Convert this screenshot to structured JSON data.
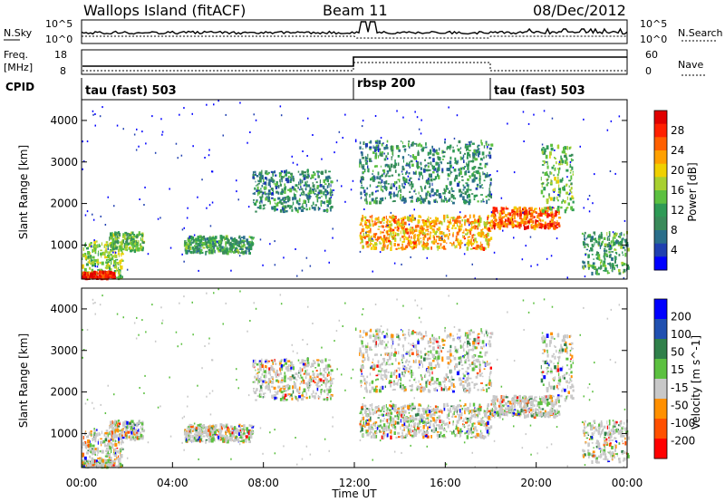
{
  "header": {
    "site": "Wallops Island (fitACF)",
    "beam": "Beam 11",
    "date": "08/Dec/2012"
  },
  "strip1": {
    "left_label": "N.Sky",
    "right_label": "N.Search",
    "left_ticks": [
      "10^5",
      "10^0"
    ],
    "right_ticks": [
      "10^5",
      "10^0"
    ]
  },
  "strip2": {
    "left_label_top": "Freq.",
    "left_label_bottom": "[MHz]",
    "right_label": "Nave",
    "left_ticks": [
      "18",
      "8"
    ],
    "right_ticks": [
      "60",
      "0"
    ]
  },
  "cpid": {
    "label": "CPID",
    "segments": [
      {
        "name": "tau (fast) 503",
        "start_hour": 0,
        "end_hour": 12
      },
      {
        "name": "rbsp 200",
        "start_hour": 12,
        "end_hour": 18
      },
      {
        "name": "tau (fast) 503",
        "start_hour": 18,
        "end_hour": 24
      }
    ]
  },
  "power_panel": {
    "ylabel": "Slant Range [km]",
    "yticks": [
      "4000",
      "3000",
      "2000",
      "1000"
    ],
    "colorbar_label": "Power [dB]",
    "colorbar_ticks": [
      "28",
      "24",
      "20",
      "16",
      "12",
      "8",
      "4"
    ],
    "colors": [
      "#0000ff",
      "#2040b0",
      "#2a6e8a",
      "#3a8a5a",
      "#2e9a55",
      "#5cc040",
      "#a8d030",
      "#f0d000",
      "#ffa000",
      "#ff6000",
      "#ff2000",
      "#e00000"
    ]
  },
  "velocity_panel": {
    "ylabel": "Slant Range [km]",
    "yticks": [
      "4000",
      "3000",
      "2000",
      "1000"
    ],
    "colorbar_label": "Velocity [m s^-1]",
    "colorbar_ticks": [
      "200",
      "100",
      "50",
      "15",
      "-15",
      "-50",
      "-100",
      "-200"
    ],
    "colors": [
      "#0000ff",
      "#2050b0",
      "#30804a",
      "#5cc040",
      "#c8c8c8",
      "#ff9000",
      "#ff5000",
      "#ff0000"
    ]
  },
  "xaxis": {
    "label": "Time UT",
    "ticks": [
      "00:00",
      "04:00",
      "08:00",
      "12:00",
      "16:00",
      "20:00",
      "00:00"
    ]
  },
  "chart_data": {
    "type": "heatmap",
    "x_range_hours": [
      0,
      24
    ],
    "y_range_km": [
      180,
      4500
    ],
    "scatter_echo_regions": [
      {
        "start_hour": 0.0,
        "end_hour": 1.8,
        "range_km": [
          200,
          1100
        ],
        "power_db": 14
      },
      {
        "start_hour": 0.0,
        "end_hour": 1.4,
        "range_km": [
          200,
          350
        ],
        "power_db": 27
      },
      {
        "start_hour": 1.2,
        "end_hour": 2.7,
        "range_km": [
          850,
          1300
        ],
        "power_db": 12
      },
      {
        "start_hour": 4.5,
        "end_hour": 7.5,
        "range_km": [
          800,
          1200
        ],
        "power_db": 10
      },
      {
        "start_hour": 7.5,
        "end_hour": 11.0,
        "range_km": [
          1800,
          2800
        ],
        "power_db": 8
      },
      {
        "start_hour": 12.2,
        "end_hour": 18.0,
        "range_km": [
          900,
          1700
        ],
        "power_db": 20
      },
      {
        "start_hour": 12.2,
        "end_hour": 18.0,
        "range_km": [
          2000,
          3500
        ],
        "power_db": 8
      },
      {
        "start_hour": 18.0,
        "end_hour": 21.0,
        "range_km": [
          1400,
          1900
        ],
        "power_db": 23
      },
      {
        "start_hour": 20.2,
        "end_hour": 21.6,
        "range_km": [
          1800,
          3400
        ],
        "power_db": 12
      },
      {
        "start_hour": 22.0,
        "end_hour": 24.0,
        "range_km": [
          300,
          1300
        ],
        "power_db": 10
      }
    ]
  }
}
